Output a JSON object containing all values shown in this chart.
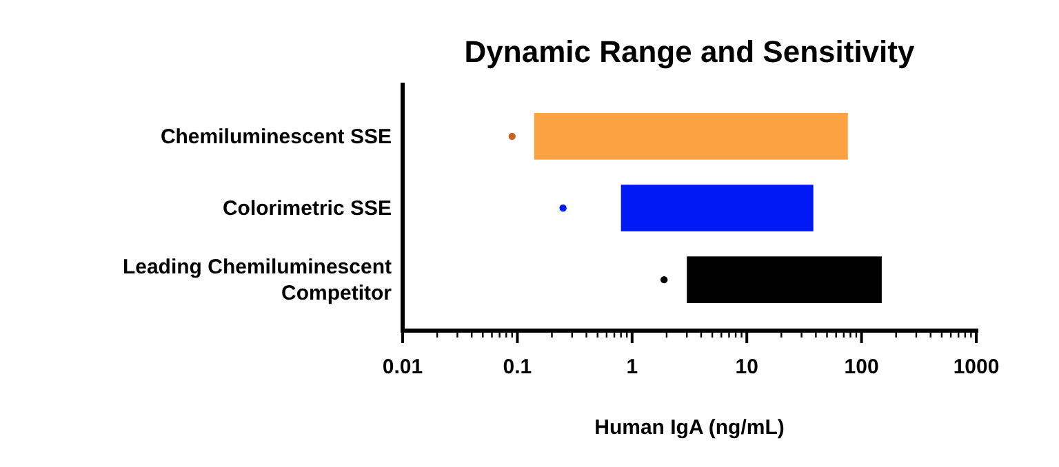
{
  "chart_data": {
    "type": "bar",
    "orientation": "horizontal",
    "title": "Dynamic Range and Sensitivity",
    "xlabel": "Human IgA (ng/mL)",
    "categories": [
      "Chemiluminescent SSE",
      "Colorimetric SSE",
      "Leading Chemiluminescent Competitor"
    ],
    "log": "x",
    "xlim": [
      0.01,
      1000
    ],
    "xticks": [
      0.01,
      {
        "value": 0.02,
        "label": null
      },
      {
        "value": 0.03,
        "label": null
      },
      {
        "value": 0.04,
        "label": null
      },
      {
        "value": 0.05,
        "label": null
      },
      {
        "value": 0.06,
        "label": null
      },
      {
        "value": 0.07,
        "label": null
      },
      {
        "value": 0.08,
        "label": null
      },
      {
        "value": 0.09,
        "label": null
      },
      0.1,
      {
        "value": 0.2,
        "label": null
      },
      {
        "value": 0.3,
        "label": null
      },
      {
        "value": 0.4,
        "label": null
      },
      {
        "value": 0.5,
        "label": null
      },
      {
        "value": 0.6,
        "label": null
      },
      {
        "value": 0.7,
        "label": null
      },
      {
        "value": 0.8,
        "label": null
      },
      {
        "value": 0.9,
        "label": null
      },
      1,
      {
        "value": 2,
        "label": null
      },
      {
        "value": 3,
        "label": null
      },
      {
        "value": 4,
        "label": null
      },
      {
        "value": 5,
        "label": null
      },
      {
        "value": 6,
        "label": null
      },
      {
        "value": 7,
        "label": null
      },
      {
        "value": 8,
        "label": null
      },
      {
        "value": 9,
        "label": null
      },
      10,
      {
        "value": 20,
        "label": null
      },
      {
        "value": 30,
        "label": null
      },
      {
        "value": 40,
        "label": null
      },
      {
        "value": 50,
        "label": null
      },
      {
        "value": 60,
        "label": null
      },
      {
        "value": 70,
        "label": null
      },
      {
        "value": 80,
        "label": null
      },
      {
        "value": 90,
        "label": null
      },
      100,
      {
        "value": 200,
        "label": null
      },
      {
        "value": 300,
        "label": null
      },
      {
        "value": 400,
        "label": null
      },
      {
        "value": 500,
        "label": null
      },
      {
        "value": 600,
        "label": null
      },
      {
        "value": 700,
        "label": null
      },
      {
        "value": 800,
        "label": null
      },
      {
        "value": 900,
        "label": null
      },
      1000
    ],
    "series": [
      {
        "colors": [
          "#fba242",
          "#0019f5",
          "#000000"
        ],
        "base": [
          0.14,
          0.8,
          3
        ],
        "values": [
          75.9,
          37.2,
          147
        ]
      },
      {
        "type": "scatter",
        "marker": "circle",
        "colors": [
          "#c8641e",
          "#0019f5",
          "#000000"
        ],
        "values": [
          0.09,
          0.25,
          1.9
        ]
      }
    ],
    "grid": false
  }
}
